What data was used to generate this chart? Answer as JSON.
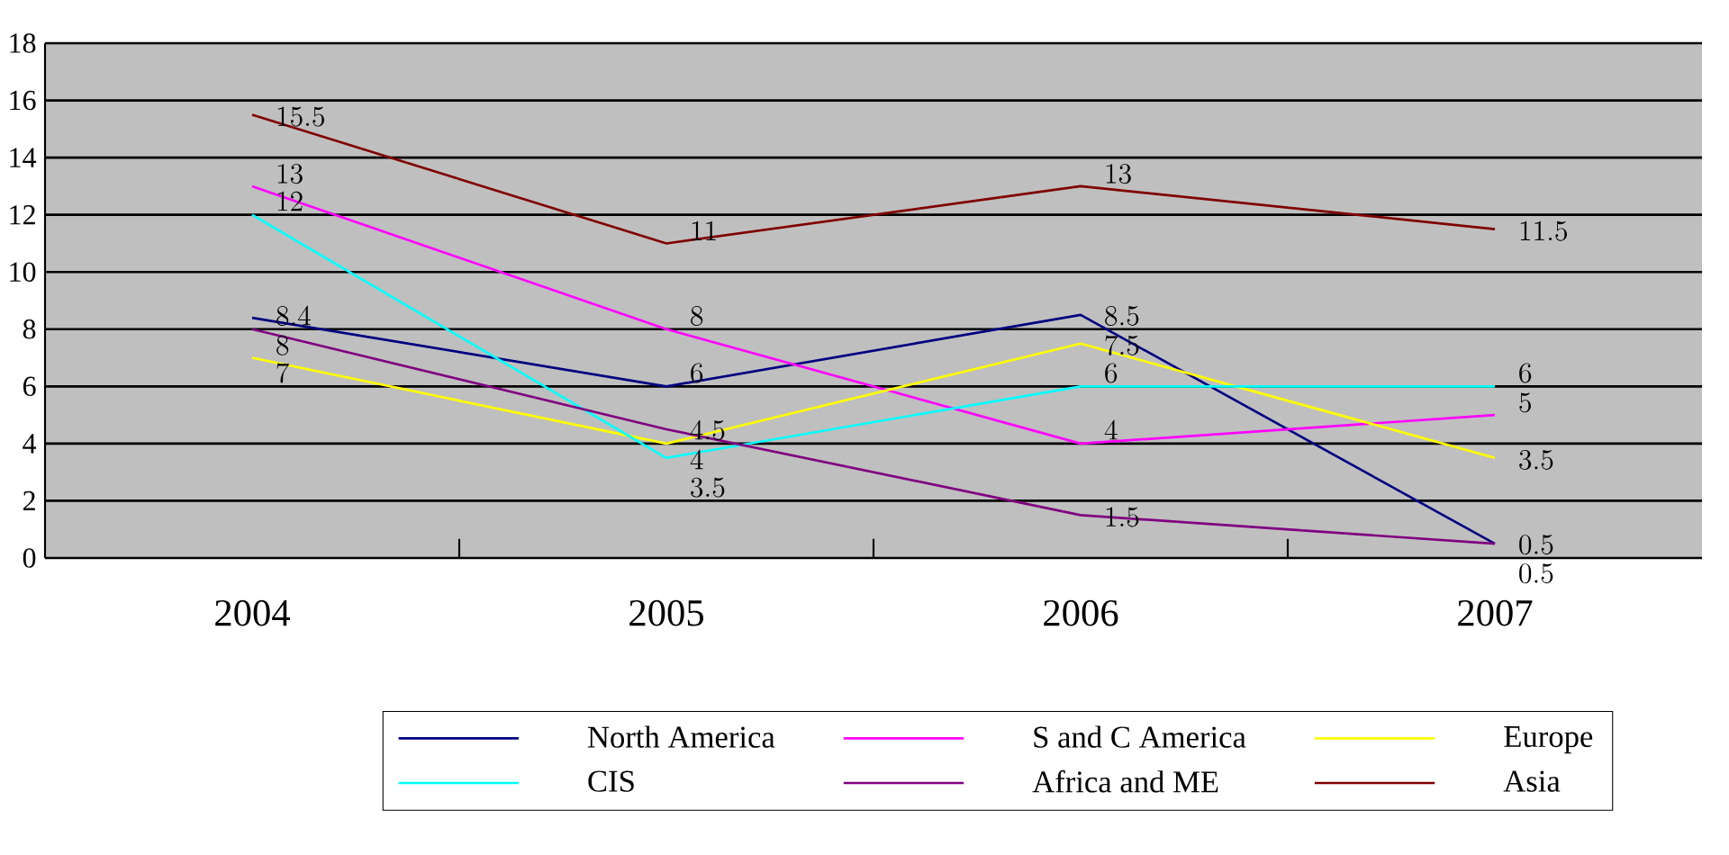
{
  "chart_data": {
    "type": "line",
    "categories": [
      "2004",
      "2005",
      "2006",
      "2007"
    ],
    "series": [
      {
        "name": "North America",
        "color": "#000080",
        "values": [
          8.4,
          6,
          8.5,
          0.5
        ]
      },
      {
        "name": "S and C America",
        "color": "#ff00ff",
        "values": [
          13,
          8,
          4,
          5
        ]
      },
      {
        "name": "Europe",
        "color": "#ffff00",
        "values": [
          7,
          4,
          7.5,
          3.5
        ]
      },
      {
        "name": "CIS",
        "color": "#00ffff",
        "values": [
          12,
          3.5,
          6,
          6
        ]
      },
      {
        "name": "Africa and ME",
        "color": "#800080",
        "values": [
          8,
          4.5,
          1.5,
          0.5
        ]
      },
      {
        "name": "Asia",
        "color": "#800000",
        "values": [
          15.5,
          11,
          13,
          11.5
        ]
      }
    ],
    "ylim": [
      0,
      18
    ],
    "yticks": [
      0,
      2,
      4,
      6,
      8,
      10,
      12,
      14,
      16,
      18
    ],
    "grid": "y",
    "legend": "bottom",
    "data_labels": true,
    "marker": "none",
    "line_style": "solid"
  }
}
